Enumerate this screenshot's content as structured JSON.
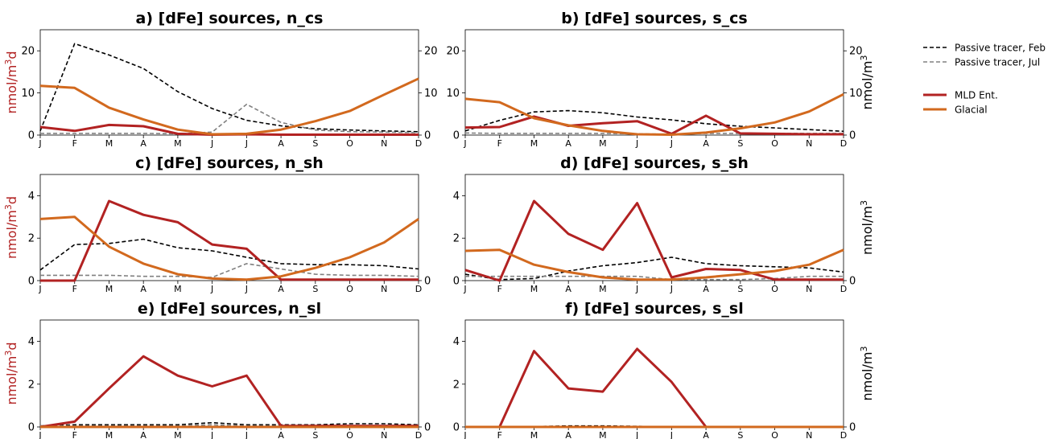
{
  "colors": {
    "mld": "#b22222",
    "glacial": "#d2691e",
    "feb": "#000000",
    "jul": "#808080"
  },
  "months": [
    "J",
    "F",
    "M",
    "A",
    "M",
    "J",
    "J",
    "A",
    "S",
    "O",
    "N",
    "D"
  ],
  "legend": {
    "feb": "Passive tracer, Feb",
    "jul": "Passive tracer, Jul",
    "mld": "MLD Ent.",
    "glacial": "Glacial"
  },
  "chart_data": [
    {
      "panel": "a",
      "type": "line",
      "title": "a) [dFe] sources, n_cs",
      "left_ylabel": "nmol/m3d",
      "right_ylabel": "",
      "left_ylim": [
        0,
        25
      ],
      "left_yticks": [
        0,
        10,
        20
      ],
      "right_ylim": [
        0,
        25
      ],
      "right_yticks": [
        0,
        10,
        20
      ],
      "series": [
        {
          "name": "Passive tracer, Feb",
          "axis": "right",
          "style": "feb",
          "values": [
            1.0,
            21.7,
            19.0,
            15.8,
            10.3,
            6.3,
            3.5,
            2.2,
            1.5,
            1.2,
            1.0,
            0.8
          ]
        },
        {
          "name": "Passive tracer, Jul",
          "axis": "right",
          "style": "jul",
          "values": [
            0.4,
            0.4,
            0.4,
            0.4,
            0.3,
            0.7,
            7.3,
            3.0,
            1.2,
            0.8,
            0.7,
            0.6
          ]
        },
        {
          "name": "MLD Ent.",
          "axis": "left",
          "style": "mld",
          "values": [
            1.9,
            1.0,
            2.4,
            2.1,
            0.3,
            0.1,
            0.2,
            0.1,
            0.1,
            0.1,
            0.1,
            0.1
          ]
        },
        {
          "name": "Glacial",
          "axis": "left",
          "style": "glacial",
          "values": [
            11.7,
            11.2,
            6.5,
            3.7,
            1.3,
            0.2,
            0.3,
            1.3,
            3.3,
            5.7,
            9.6,
            13.4
          ]
        }
      ]
    },
    {
      "panel": "b",
      "type": "line",
      "title": "b) [dFe] sources, s_cs",
      "left_ylabel": "",
      "right_ylabel": "nmol/m3",
      "left_ylim": [
        0,
        25
      ],
      "left_yticks": [
        0,
        10,
        20
      ],
      "right_ylim": [
        0,
        25
      ],
      "right_yticks": [
        0,
        10,
        20
      ],
      "series": [
        {
          "name": "Passive tracer, Feb",
          "axis": "right",
          "style": "feb",
          "values": [
            1.0,
            3.5,
            5.5,
            5.8,
            5.3,
            4.3,
            3.6,
            2.7,
            2.1,
            1.7,
            1.3,
            0.9
          ]
        },
        {
          "name": "Passive tracer, Jul",
          "axis": "right",
          "style": "jul",
          "values": [
            0.5,
            0.4,
            0.4,
            0.4,
            0.4,
            0.3,
            0.2,
            0.4,
            0.4,
            0.4,
            0.4,
            0.4
          ]
        },
        {
          "name": "MLD Ent.",
          "axis": "left",
          "style": "mld",
          "values": [
            1.8,
            1.9,
            4.4,
            2.2,
            2.8,
            3.3,
            0.3,
            4.6,
            0.4,
            0.3,
            0.2,
            0.2
          ]
        },
        {
          "name": "Glacial",
          "axis": "left",
          "style": "glacial",
          "values": [
            8.6,
            7.8,
            4.0,
            2.3,
            1.0,
            0.2,
            0.1,
            0.6,
            1.6,
            3.0,
            5.6,
            9.7
          ]
        }
      ]
    },
    {
      "panel": "c",
      "type": "line",
      "title": "c) [dFe] sources, n_sh",
      "left_ylabel": "nmol/m3d",
      "right_ylabel": "",
      "left_ylim": [
        0,
        5
      ],
      "left_yticks": [
        0,
        2,
        4
      ],
      "right_ylim": [
        0,
        5
      ],
      "right_yticks": [
        0
      ],
      "series": [
        {
          "name": "Passive tracer, Feb",
          "axis": "right",
          "style": "feb",
          "values": [
            0.5,
            1.7,
            1.75,
            1.95,
            1.55,
            1.4,
            1.1,
            0.8,
            0.75,
            0.75,
            0.7,
            0.55
          ]
        },
        {
          "name": "Passive tracer, Jul",
          "axis": "right",
          "style": "jul",
          "values": [
            0.25,
            0.25,
            0.25,
            0.2,
            0.2,
            0.15,
            0.8,
            0.55,
            0.3,
            0.25,
            0.25,
            0.2
          ]
        },
        {
          "name": "MLD Ent.",
          "axis": "left",
          "style": "mld",
          "values": [
            0.0,
            0.0,
            3.75,
            3.1,
            2.75,
            1.7,
            1.5,
            0.05,
            0.05,
            0.05,
            0.05,
            0.05
          ]
        },
        {
          "name": "Glacial",
          "axis": "left",
          "style": "glacial",
          "values": [
            2.9,
            3.0,
            1.6,
            0.8,
            0.3,
            0.1,
            0.05,
            0.2,
            0.6,
            1.1,
            1.8,
            2.9
          ]
        }
      ]
    },
    {
      "panel": "d",
      "type": "line",
      "title": "d) [dFe] sources, s_sh",
      "left_ylabel": "",
      "right_ylabel": "nmol/m3",
      "left_ylim": [
        0,
        5
      ],
      "left_yticks": [
        0,
        2,
        4
      ],
      "right_ylim": [
        0,
        5
      ],
      "right_yticks": [
        0
      ],
      "series": [
        {
          "name": "Passive tracer, Feb",
          "axis": "right",
          "style": "feb",
          "values": [
            0.3,
            0.05,
            0.1,
            0.45,
            0.7,
            0.85,
            1.1,
            0.8,
            0.7,
            0.65,
            0.6,
            0.4
          ]
        },
        {
          "name": "Passive tracer, Jul",
          "axis": "right",
          "style": "jul",
          "values": [
            0.2,
            0.2,
            0.2,
            0.2,
            0.2,
            0.2,
            0.05,
            0.05,
            0.05,
            0.1,
            0.2,
            0.2
          ]
        },
        {
          "name": "MLD Ent.",
          "axis": "left",
          "style": "mld",
          "values": [
            0.5,
            0.0,
            3.75,
            2.2,
            1.45,
            3.65,
            0.15,
            0.55,
            0.5,
            0.05,
            0.05,
            0.05
          ]
        },
        {
          "name": "Glacial",
          "axis": "left",
          "style": "glacial",
          "values": [
            1.4,
            1.45,
            0.75,
            0.4,
            0.15,
            0.05,
            0.05,
            0.15,
            0.3,
            0.45,
            0.75,
            1.45
          ]
        }
      ]
    },
    {
      "panel": "e",
      "type": "line",
      "title": "e) [dFe] sources, n_sl",
      "left_ylabel": "nmol/m3d",
      "right_ylabel": "",
      "left_ylim": [
        0,
        5
      ],
      "left_yticks": [
        0,
        2,
        4
      ],
      "right_ylim": [
        0,
        5
      ],
      "right_yticks": [
        0
      ],
      "series": [
        {
          "name": "Passive tracer, Feb",
          "axis": "right",
          "style": "feb",
          "values": [
            0.05,
            0.1,
            0.1,
            0.1,
            0.1,
            0.2,
            0.1,
            0.1,
            0.1,
            0.15,
            0.15,
            0.1
          ]
        },
        {
          "name": "Passive tracer, Jul",
          "axis": "right",
          "style": "jul",
          "values": [
            0.05,
            0.05,
            0.05,
            0.05,
            0.05,
            0.1,
            0.05,
            0.05,
            0.05,
            0.05,
            0.05,
            0.05
          ]
        },
        {
          "name": "MLD Ent.",
          "axis": "left",
          "style": "mld",
          "values": [
            0.0,
            0.25,
            1.8,
            3.3,
            2.4,
            1.9,
            2.4,
            0.05,
            0.05,
            0.05,
            0.05,
            0.05
          ]
        },
        {
          "name": "Glacial",
          "axis": "left",
          "style": "glacial",
          "values": [
            0,
            0,
            0,
            0,
            0,
            0,
            0,
            0,
            0,
            0,
            0,
            0
          ]
        }
      ]
    },
    {
      "panel": "f",
      "type": "line",
      "title": "f) [dFe] sources, s_sl",
      "left_ylabel": "",
      "right_ylabel": "nmol/m3",
      "left_ylim": [
        0,
        5
      ],
      "left_yticks": [
        0,
        2,
        4
      ],
      "right_ylim": [
        0,
        5
      ],
      "right_yticks": [
        0
      ],
      "series": [
        {
          "name": "Passive tracer, Feb",
          "axis": "right",
          "style": "feb",
          "values": [
            0.02,
            0.02,
            0.02,
            0.05,
            0.05,
            0.03,
            0.02,
            0.02,
            0.02,
            0.02,
            0.02,
            0.02
          ]
        },
        {
          "name": "Passive tracer, Jul",
          "axis": "right",
          "style": "jul",
          "values": [
            0.02,
            0.02,
            0.02,
            0.02,
            0.02,
            0.02,
            0.02,
            0.02,
            0.02,
            0.02,
            0.02,
            0.02
          ]
        },
        {
          "name": "MLD Ent.",
          "axis": "left",
          "style": "mld",
          "values": [
            0.0,
            0.0,
            3.55,
            1.8,
            1.65,
            3.65,
            2.1,
            0.0,
            0.0,
            0.0,
            0.0,
            0.0
          ]
        },
        {
          "name": "Glacial",
          "axis": "left",
          "style": "glacial",
          "values": [
            0,
            0,
            0,
            0,
            0,
            0,
            0,
            0,
            0,
            0,
            0,
            0
          ]
        }
      ]
    }
  ]
}
